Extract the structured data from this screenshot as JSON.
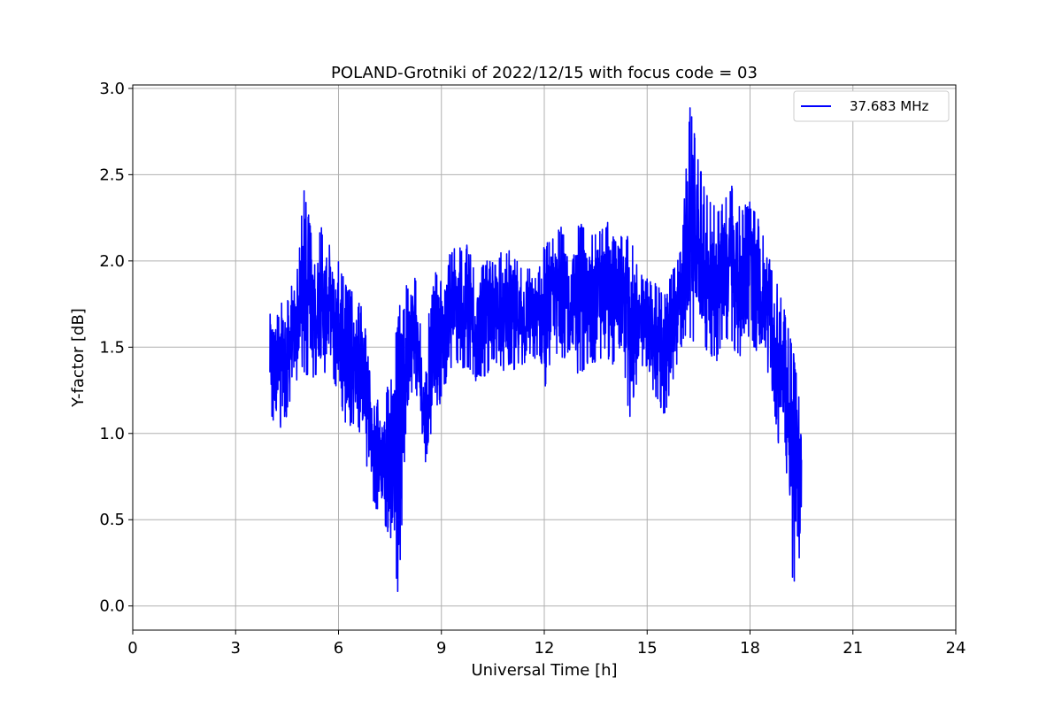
{
  "chart_data": {
    "type": "line",
    "title": "POLAND-Grotniki of 2022/12/15 with focus code = 03",
    "xlabel": "Universal Time [h]",
    "ylabel": "Y-factor [dB]",
    "xlim": [
      0,
      24
    ],
    "ylim": [
      -0.14,
      3.02
    ],
    "xticks": [
      0,
      3,
      6,
      9,
      12,
      15,
      18,
      21,
      24
    ],
    "xtick_labels": [
      "0",
      "3",
      "6",
      "9",
      "12",
      "15",
      "18",
      "21",
      "24"
    ],
    "yticks": [
      0.0,
      0.5,
      1.0,
      1.5,
      2.0,
      2.5,
      3.0
    ],
    "ytick_labels": [
      "0.0",
      "0.5",
      "1.0",
      "1.5",
      "2.0",
      "2.5",
      "3.0"
    ],
    "grid": true,
    "legend_position": "top-right",
    "series": [
      {
        "name": "37.683 MHz",
        "color": "#0000ff",
        "x": [
          4.0,
          4.25,
          4.5,
          4.75,
          5.0,
          5.25,
          5.5,
          5.75,
          6.0,
          6.25,
          6.5,
          6.75,
          7.0,
          7.25,
          7.5,
          7.75,
          8.0,
          8.25,
          8.5,
          8.75,
          9.0,
          9.25,
          9.5,
          9.75,
          10.0,
          10.25,
          10.5,
          10.75,
          11.0,
          11.25,
          11.5,
          11.75,
          12.0,
          12.25,
          12.5,
          12.75,
          13.0,
          13.25,
          13.5,
          13.75,
          14.0,
          14.25,
          14.5,
          14.75,
          15.0,
          15.25,
          15.5,
          15.75,
          16.0,
          16.25,
          16.5,
          16.75,
          17.0,
          17.25,
          17.5,
          17.75,
          18.0,
          18.25,
          18.5,
          18.75,
          19.0,
          19.25,
          19.5
        ],
        "y_min": [
          1.1,
          1.0,
          1.1,
          1.3,
          1.35,
          1.3,
          1.3,
          1.35,
          1.2,
          1.0,
          1.05,
          0.9,
          0.6,
          0.5,
          0.4,
          0.05,
          1.15,
          1.25,
          0.8,
          1.05,
          1.2,
          1.35,
          1.4,
          1.35,
          1.3,
          1.3,
          1.4,
          1.35,
          1.4,
          1.3,
          1.45,
          1.4,
          1.2,
          1.45,
          1.4,
          1.45,
          1.3,
          1.4,
          1.4,
          1.45,
          1.4,
          1.5,
          1.05,
          1.35,
          1.35,
          1.2,
          1.1,
          1.3,
          1.5,
          1.55,
          1.5,
          1.45,
          1.4,
          1.55,
          1.5,
          1.4,
          1.55,
          1.4,
          1.35,
          0.9,
          1.0,
          0.1,
          0.3
        ],
        "y_max": [
          1.8,
          1.7,
          1.9,
          1.85,
          2.45,
          2.1,
          2.2,
          2.1,
          2.0,
          1.85,
          1.8,
          1.7,
          1.2,
          1.2,
          1.3,
          1.7,
          2.05,
          1.9,
          1.4,
          2.0,
          1.9,
          2.05,
          2.1,
          2.1,
          1.95,
          2.0,
          2.0,
          2.05,
          2.1,
          2.0,
          2.0,
          1.9,
          2.1,
          2.15,
          2.2,
          2.1,
          2.25,
          2.15,
          2.2,
          2.2,
          2.3,
          2.15,
          2.15,
          1.95,
          1.9,
          1.9,
          1.8,
          1.95,
          2.1,
          2.9,
          2.6,
          2.4,
          2.3,
          2.35,
          2.45,
          2.3,
          2.35,
          2.25,
          2.05,
          1.9,
          1.75,
          1.5,
          1.15
        ]
      }
    ]
  }
}
